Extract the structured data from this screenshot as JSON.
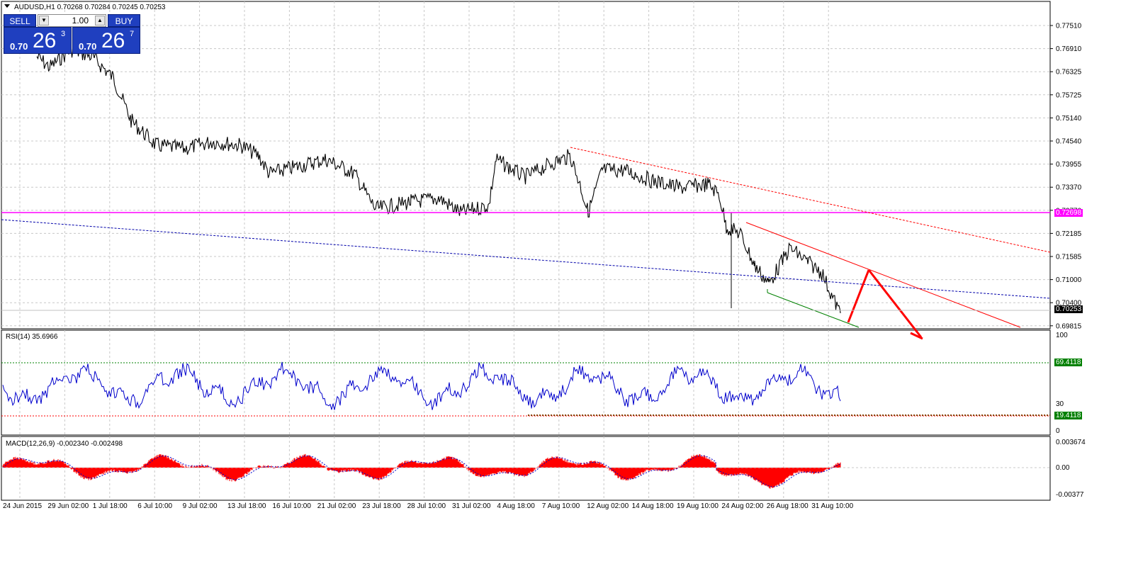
{
  "header": {
    "symbol_info": "AUDUSD,H1  0.70268 0.70284 0.70245 0.70253"
  },
  "trade_panel": {
    "sell_label": "SELL",
    "buy_label": "BUY",
    "lot_value": "1.00",
    "sell_price_small": "0.70",
    "sell_price_big": "26",
    "sell_price_sup": "3",
    "buy_price_small": "0.70",
    "buy_price_big": "26",
    "buy_price_sup": "7"
  },
  "price_axis": {
    "ticks": [
      "0.77510",
      "0.76910",
      "0.76325",
      "0.75725",
      "0.75140",
      "0.74540",
      "0.73955",
      "0.73370",
      "0.72770",
      "0.72185",
      "0.71585",
      "0.71000",
      "0.70400",
      "0.69815"
    ],
    "current_price_label": "0.70253",
    "horizontal_line_label": "0.72698"
  },
  "rsi": {
    "title": "RSI(14) 35.6966",
    "levels": [
      "100",
      "30",
      "0"
    ],
    "upper_tag": "69.4118",
    "lower_tag": "19.4118"
  },
  "macd": {
    "title": "MACD(12,26,9) -0.002340 -0.002498",
    "levels": [
      "0.003674",
      "0.00",
      "-0.00377"
    ]
  },
  "time_axis": {
    "labels": [
      "24 Jun 2015",
      "29 Jun 02:00",
      "1 Jul 18:00",
      "6 Jul 10:00",
      "9 Jul 02:00",
      "13 Jul 18:00",
      "16 Jul 10:00",
      "21 Jul 02:00",
      "23 Jul 18:00",
      "28 Jul 10:00",
      "31 Jul 02:00",
      "4 Aug 18:00",
      "7 Aug 10:00",
      "12 Aug 02:00",
      "14 Aug 18:00",
      "19 Aug 10:00",
      "24 Aug 02:00",
      "26 Aug 18:00",
      "31 Aug 10:00"
    ]
  },
  "colors": {
    "candles": "#000000",
    "horizontal_line": "#ff00ff",
    "rsi_line": "#0000cc",
    "macd_hist": "#ff0000",
    "trend_red": "#ff0000",
    "trend_blue": "#0000aa",
    "channel_green": "#008000",
    "tag_green": "#008000"
  }
}
